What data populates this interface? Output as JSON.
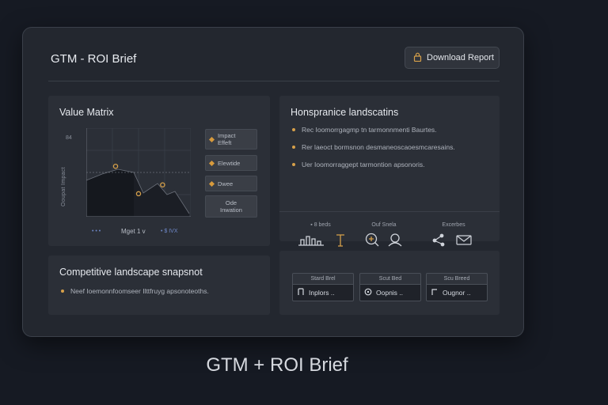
{
  "window": {
    "title": "GTM - ROI Brief",
    "download_label": "Download Report"
  },
  "value_matrix": {
    "title": "Value Matrix",
    "y_axis_label": "Ooupat Impact",
    "y_top_label": "84",
    "x_axis_label": "Mget 1 v",
    "x_legend_left": "• • •",
    "x_legend_right": "• $ IVX",
    "legend": [
      {
        "label": "Impact Effeft",
        "marker": true
      },
      {
        "label": "Elewtide",
        "marker": true
      },
      {
        "label": "Dwee",
        "marker": true
      },
      {
        "label": "Ode Inwation",
        "marker": false
      }
    ],
    "points": [
      {
        "x": 0.28,
        "y": 0.57
      },
      {
        "x": 0.5,
        "y": 0.26
      },
      {
        "x": 0.73,
        "y": 0.36
      }
    ]
  },
  "hospitality": {
    "title": "Honspranice landscatins",
    "bullets": [
      "Rec Ioomorrgagmp tn tarmonnmenti Baurtes.",
      "Rer laeoct bormsnon desmaneoscaoesmcaresains.",
      "Uer Ioomorraggept tarmontion apsonoris."
    ],
    "icons": [
      {
        "label": "▪ 8 beds",
        "icon": "bar-chart-icon"
      },
      {
        "label": "Ouf Snela",
        "icon": "magnify-icon"
      },
      {
        "label": "Excerbes",
        "icon": "share-mail-icon"
      }
    ]
  },
  "competitive": {
    "title": "Competitive landscape snapsnot",
    "bullets": [
      "Neef Ioemonnfoomseer Ilttfruyg apsonoteoths."
    ]
  },
  "shortcuts": [
    {
      "label": "Stard Brel",
      "value": "Inplors .."
    },
    {
      "label": "Scut Bed",
      "value": "Oopnis .."
    },
    {
      "label": "Scu Breed",
      "value": "Ougnor .."
    }
  ],
  "caption": "GTM + ROI Brief",
  "colors": {
    "accent": "#d6a04a",
    "bg": "#161a23",
    "panel": "#2b2f37"
  }
}
